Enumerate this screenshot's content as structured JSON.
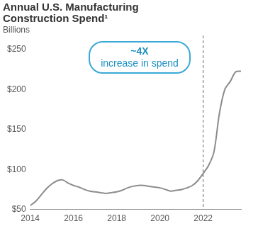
{
  "chart_data": {
    "type": "line",
    "title": "Annual U.S. Manufacturing Construction Spend¹",
    "subtitle": "Billions",
    "annotation": [
      "~4X",
      "increase in spend"
    ],
    "vline": 2022,
    "x": [
      2014,
      2014.25,
      2014.5,
      2014.75,
      2015,
      2015.25,
      2015.5,
      2015.75,
      2016,
      2016.25,
      2016.5,
      2016.75,
      2017,
      2017.25,
      2017.5,
      2017.75,
      2018,
      2018.25,
      2018.5,
      2018.75,
      2019,
      2019.25,
      2019.5,
      2019.75,
      2020,
      2020.25,
      2020.5,
      2020.75,
      2021,
      2021.25,
      2021.5,
      2021.75,
      2022,
      2022.25,
      2022.5,
      2022.75,
      2023,
      2023.25,
      2023.5,
      2023.75
    ],
    "values": [
      55,
      60,
      68,
      76,
      82,
      86,
      87,
      83,
      80,
      78,
      75,
      73,
      72,
      71,
      70,
      71,
      72,
      74,
      77,
      79,
      80,
      80,
      79,
      78,
      77,
      75,
      73,
      74,
      75,
      77,
      80,
      86,
      95,
      105,
      122,
      170,
      200,
      210,
      222,
      223
    ],
    "color": "#8c8c8c",
    "xlim": [
      2014,
      2023.75
    ],
    "xticks": [
      2014,
      2016,
      2018,
      2020,
      2022
    ],
    "ylim": [
      50,
      250
    ],
    "yticks": [
      {
        "value": 50,
        "label": "$50"
      },
      {
        "value": 100,
        "label": "$100"
      },
      {
        "value": 150,
        "label": "$150"
      },
      {
        "value": 200,
        "label": "$200"
      },
      {
        "value": 250,
        "label": "$250"
      }
    ],
    "grid": false
  }
}
